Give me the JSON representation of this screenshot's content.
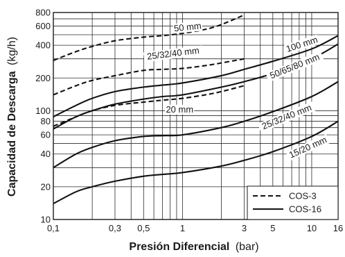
{
  "chart_data": {
    "type": "line",
    "title": "",
    "xlabel_bold": "Presión Diferencial",
    "xlabel_unit": "(bar)",
    "ylabel_bold": "Capacidad de Descarga",
    "ylabel_unit": "(kg/h)",
    "x_scale": "log",
    "y_scale": "log",
    "xlim": [
      0.1,
      16
    ],
    "ylim": [
      10,
      800
    ],
    "grid": true,
    "legend_position": "bottom-right",
    "x_ticks": [
      {
        "value": 0.1,
        "label": "0,1"
      },
      {
        "value": 0.3,
        "label": "0,3"
      },
      {
        "value": 0.5,
        "label": "0,5"
      },
      {
        "value": 1,
        "label": "1"
      },
      {
        "value": 3,
        "label": "3"
      },
      {
        "value": 5,
        "label": "5"
      },
      {
        "value": 10,
        "label": "10"
      },
      {
        "value": 16,
        "label": "16"
      }
    ],
    "y_ticks": [
      {
        "value": 10,
        "label": "10"
      },
      {
        "value": 20,
        "label": "20"
      },
      {
        "value": 40,
        "label": "40"
      },
      {
        "value": 60,
        "label": "60"
      },
      {
        "value": 80,
        "label": "80"
      },
      {
        "value": 100,
        "label": "100"
      },
      {
        "value": 200,
        "label": "200"
      },
      {
        "value": 400,
        "label": "400"
      },
      {
        "value": 600,
        "label": "600"
      },
      {
        "value": 800,
        "label": "800"
      }
    ],
    "x_grid": [
      0.1,
      0.2,
      0.3,
      0.4,
      0.5,
      0.6,
      0.7,
      0.8,
      0.9,
      1,
      2,
      3,
      4,
      5,
      6,
      7,
      8,
      9,
      10,
      16
    ],
    "y_grid": [
      10,
      20,
      30,
      40,
      50,
      60,
      70,
      80,
      90,
      100,
      200,
      300,
      400,
      500,
      600,
      700,
      800
    ],
    "legend": [
      {
        "name": "COS-3",
        "style": "dashed"
      },
      {
        "name": "COS-16",
        "style": "solid"
      }
    ],
    "series": [
      {
        "label": "50 mm",
        "model": "COS-3",
        "style": "dashed",
        "label_at": {
          "x": 1.1,
          "y": 560,
          "angle": -6
        },
        "points": [
          [
            0.1,
            290
          ],
          [
            0.15,
            350
          ],
          [
            0.2,
            390
          ],
          [
            0.3,
            440
          ],
          [
            0.5,
            475
          ],
          [
            0.7,
            490
          ],
          [
            1,
            515
          ],
          [
            1.5,
            560
          ],
          [
            2,
            620
          ],
          [
            3,
            760
          ]
        ]
      },
      {
        "label": "25/32/40 mm",
        "model": "COS-3",
        "style": "dashed",
        "label_at": {
          "x": 0.85,
          "y": 320,
          "angle": -7
        },
        "points": [
          [
            0.1,
            140
          ],
          [
            0.15,
            170
          ],
          [
            0.2,
            190
          ],
          [
            0.3,
            210
          ],
          [
            0.5,
            235
          ],
          [
            0.7,
            240
          ],
          [
            1,
            245
          ],
          [
            1.5,
            260
          ],
          [
            2,
            275
          ],
          [
            3,
            300
          ]
        ]
      },
      {
        "label": "20 mm",
        "model": "COS-3",
        "style": "dashed",
        "label_at": {
          "x": 0.95,
          "y": 98,
          "angle": 0
        },
        "points": [
          [
            0.1,
            72
          ],
          [
            0.15,
            88
          ],
          [
            0.2,
            100
          ],
          [
            0.3,
            112
          ],
          [
            0.5,
            120
          ],
          [
            0.7,
            125
          ],
          [
            1,
            130
          ],
          [
            1.5,
            140
          ],
          [
            2,
            150
          ],
          [
            3,
            170
          ]
        ]
      },
      {
        "label": "100 mm",
        "model": "COS-16",
        "style": "solid",
        "label_at": {
          "x": 8.5,
          "y": 390,
          "angle": -18
        },
        "points": [
          [
            0.1,
            88
          ],
          [
            0.15,
            112
          ],
          [
            0.2,
            130
          ],
          [
            0.3,
            150
          ],
          [
            0.5,
            165
          ],
          [
            0.7,
            172
          ],
          [
            1,
            180
          ],
          [
            2,
            210
          ],
          [
            3,
            240
          ],
          [
            5,
            285
          ],
          [
            10,
            370
          ],
          [
            16,
            490
          ]
        ]
      },
      {
        "label": "50/65/80 mm",
        "model": "COS-16",
        "style": "solid",
        "label_at": {
          "x": 7.5,
          "y": 245,
          "angle": -22
        },
        "points": [
          [
            0.1,
            68
          ],
          [
            0.15,
            88
          ],
          [
            0.2,
            100
          ],
          [
            0.3,
            115
          ],
          [
            0.5,
            128
          ],
          [
            0.7,
            135
          ],
          [
            1,
            140
          ],
          [
            2,
            165
          ],
          [
            3,
            185
          ],
          [
            5,
            220
          ],
          [
            10,
            300
          ],
          [
            16,
            410
          ]
        ]
      },
      {
        "label": "25/32/40 mm",
        "model": "COS-16",
        "style": "solid",
        "label_at": {
          "x": 6.5,
          "y": 84,
          "angle": -22
        },
        "points": [
          [
            0.1,
            30
          ],
          [
            0.15,
            40
          ],
          [
            0.2,
            46
          ],
          [
            0.3,
            53
          ],
          [
            0.5,
            58
          ],
          [
            0.7,
            59
          ],
          [
            1,
            60
          ],
          [
            2,
            70
          ],
          [
            3,
            80
          ],
          [
            5,
            98
          ],
          [
            10,
            135
          ],
          [
            16,
            185
          ]
        ]
      },
      {
        "label": "15/20 mm",
        "model": "COS-16",
        "style": "solid",
        "label_at": {
          "x": 9.5,
          "y": 44,
          "angle": -24
        },
        "points": [
          [
            0.1,
            14
          ],
          [
            0.15,
            18
          ],
          [
            0.2,
            20
          ],
          [
            0.3,
            22.5
          ],
          [
            0.5,
            25
          ],
          [
            0.7,
            26
          ],
          [
            1,
            27
          ],
          [
            2,
            31
          ],
          [
            3,
            35
          ],
          [
            5,
            42
          ],
          [
            10,
            58
          ],
          [
            16,
            80
          ]
        ]
      }
    ]
  }
}
